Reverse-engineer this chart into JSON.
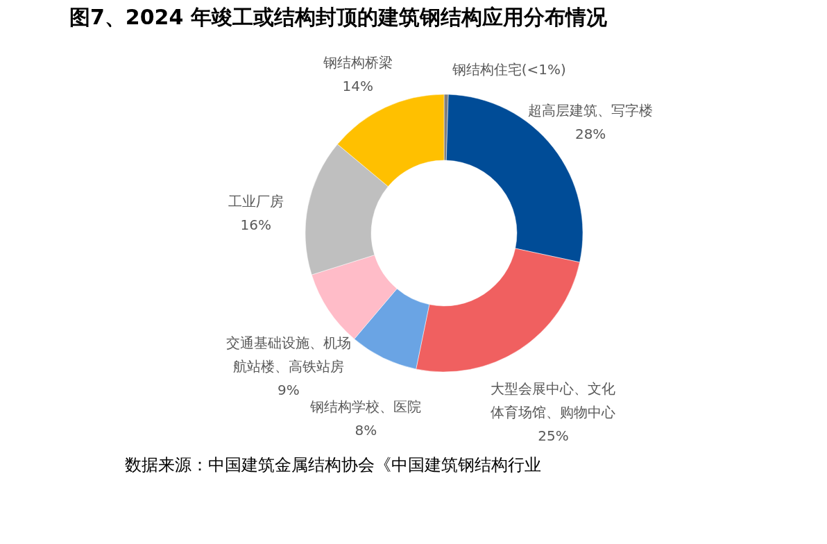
{
  "chart_data": {
    "type": "donut",
    "title": "图7、2024 年竣工或结构封顶的建筑钢结构应用分布情况",
    "categories": [
      "钢结构住宅",
      "超高层建筑、写字楼",
      "大型会展中心、文化体育场馆、购物中心",
      "钢结构学校、医院",
      "交通基础设施、机场航站楼、高铁站房",
      "工业厂房",
      "钢结构桥梁"
    ],
    "values": [
      0.5,
      28,
      25,
      8,
      9,
      16,
      14
    ],
    "value_labels": [
      "(<1%)",
      "28%",
      "25%",
      "8%",
      "9%",
      "16%",
      "14%"
    ],
    "colors": [
      "#7f7f7f",
      "#004c97",
      "#f06060",
      "#6aa4e4",
      "#ffbcc8",
      "#bfbfbf",
      "#ffc000"
    ],
    "legend": false,
    "annotations": [
      "数据来源：中国建筑金属结构协会《中国建筑钢结构行业"
    ]
  }
}
